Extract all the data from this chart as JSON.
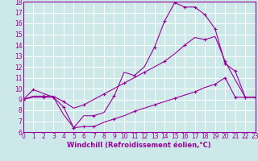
{
  "xlabel": "Windchill (Refroidissement éolien,°C)",
  "xlim": [
    0,
    23
  ],
  "ylim": [
    6,
    18
  ],
  "xticks": [
    0,
    1,
    2,
    3,
    4,
    5,
    6,
    7,
    8,
    9,
    10,
    11,
    12,
    13,
    14,
    15,
    16,
    17,
    18,
    19,
    20,
    21,
    22,
    23
  ],
  "yticks": [
    6,
    7,
    8,
    9,
    10,
    11,
    12,
    13,
    14,
    15,
    16,
    17,
    18
  ],
  "bg_color": "#cce8e8",
  "line_color": "#990099",
  "grid_color": "#ffffff",
  "line1_x": [
    0,
    1,
    3,
    4,
    5,
    6,
    7,
    8,
    9,
    10,
    11,
    12,
    13,
    14,
    15,
    16,
    17,
    18,
    19,
    20,
    21,
    22,
    23
  ],
  "line1_y": [
    9.0,
    9.9,
    9.2,
    7.6,
    6.4,
    7.5,
    7.5,
    7.8,
    9.3,
    11.5,
    11.2,
    12.0,
    13.8,
    16.2,
    17.9,
    17.5,
    17.5,
    16.8,
    15.5,
    12.3,
    11.6,
    9.2,
    9.2
  ],
  "line1_markers_x": [
    0,
    1,
    3,
    5,
    7,
    9,
    11,
    13,
    14,
    15,
    16,
    17,
    18,
    19,
    20,
    21,
    22,
    23
  ],
  "line1_markers_y": [
    9.0,
    9.9,
    9.2,
    6.4,
    7.5,
    9.3,
    11.2,
    13.8,
    16.2,
    17.9,
    17.5,
    17.5,
    16.8,
    15.5,
    12.3,
    11.6,
    9.2,
    9.2
  ],
  "line2_x": [
    0,
    1,
    2,
    3,
    4,
    5,
    6,
    7,
    8,
    9,
    10,
    11,
    12,
    13,
    14,
    15,
    16,
    17,
    18,
    19,
    20,
    21,
    22,
    23
  ],
  "line2_y": [
    9.0,
    9.3,
    9.3,
    9.3,
    8.8,
    8.2,
    8.5,
    9.0,
    9.5,
    10.0,
    10.5,
    11.0,
    11.5,
    12.0,
    12.5,
    13.2,
    14.0,
    14.7,
    14.5,
    14.8,
    12.5,
    10.8,
    9.2,
    9.2
  ],
  "line2_markers_x": [
    0,
    2,
    4,
    6,
    8,
    10,
    12,
    14,
    16,
    18,
    20,
    22,
    23
  ],
  "line2_markers_y": [
    9.0,
    9.3,
    8.8,
    8.5,
    9.5,
    10.5,
    11.5,
    12.5,
    14.0,
    14.5,
    12.5,
    9.2,
    9.2
  ],
  "line3_x": [
    0,
    1,
    2,
    3,
    4,
    5,
    6,
    7,
    8,
    9,
    10,
    11,
    12,
    13,
    14,
    15,
    16,
    17,
    18,
    19,
    20,
    21,
    22,
    23
  ],
  "line3_y": [
    9.0,
    9.2,
    9.2,
    9.2,
    8.3,
    6.4,
    6.5,
    6.5,
    6.9,
    7.2,
    7.5,
    7.9,
    8.2,
    8.5,
    8.8,
    9.1,
    9.4,
    9.7,
    10.1,
    10.4,
    11.0,
    9.2,
    9.2,
    9.2
  ],
  "line3_markers_x": [
    0,
    2,
    4,
    5,
    6,
    7,
    9,
    11,
    13,
    15,
    17,
    19,
    20,
    21,
    23
  ],
  "line3_markers_y": [
    9.0,
    9.2,
    8.3,
    6.4,
    6.5,
    6.5,
    7.2,
    7.9,
    8.5,
    9.1,
    9.7,
    10.4,
    11.0,
    9.2,
    9.2
  ],
  "tick_fontsize": 5.5,
  "xlabel_fontsize": 6,
  "marker": "+"
}
